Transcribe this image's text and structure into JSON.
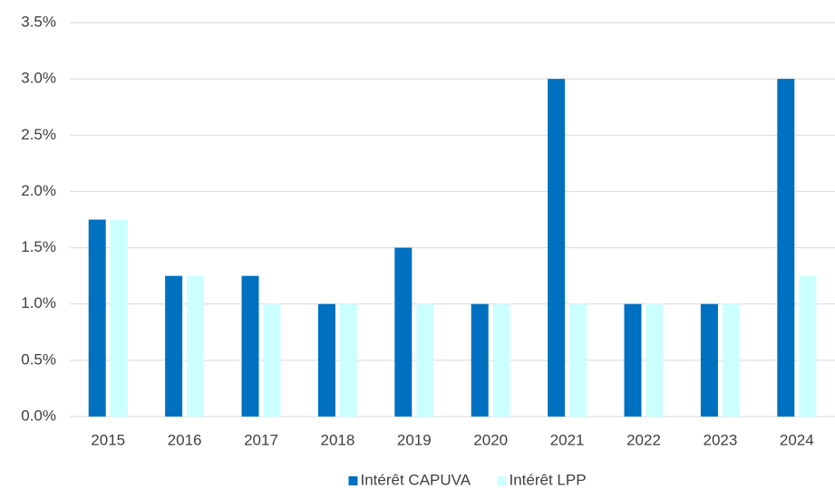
{
  "chart_data": {
    "type": "bar",
    "categories": [
      "2015",
      "2016",
      "2017",
      "2018",
      "2019",
      "2020",
      "2021",
      "2022",
      "2023",
      "2024"
    ],
    "series": [
      {
        "name": "Intérêt CAPUVA",
        "color": "#0070c0",
        "values": [
          1.75,
          1.25,
          1.25,
          1,
          1.5,
          1,
          3,
          1,
          1,
          3
        ]
      },
      {
        "name": "Intérêt LPP",
        "color": "#ccffff",
        "values": [
          1.75,
          1.25,
          1,
          1,
          1,
          1,
          1,
          1,
          1,
          1.25
        ]
      }
    ],
    "ylim": [
      0,
      3.5
    ],
    "yticks": [
      {
        "value": 0,
        "label": "0.0%"
      },
      {
        "value": 0.5,
        "label": "0.5%"
      },
      {
        "value": 1,
        "label": "1.0%"
      },
      {
        "value": 1.5,
        "label": "1.5%"
      },
      {
        "value": 2,
        "label": "2.0%"
      },
      {
        "value": 2.5,
        "label": "2.5%"
      },
      {
        "value": 3,
        "label": "3.0%"
      },
      {
        "value": 3.5,
        "label": "3.5%"
      }
    ],
    "grid": true,
    "legend": "bottom"
  }
}
